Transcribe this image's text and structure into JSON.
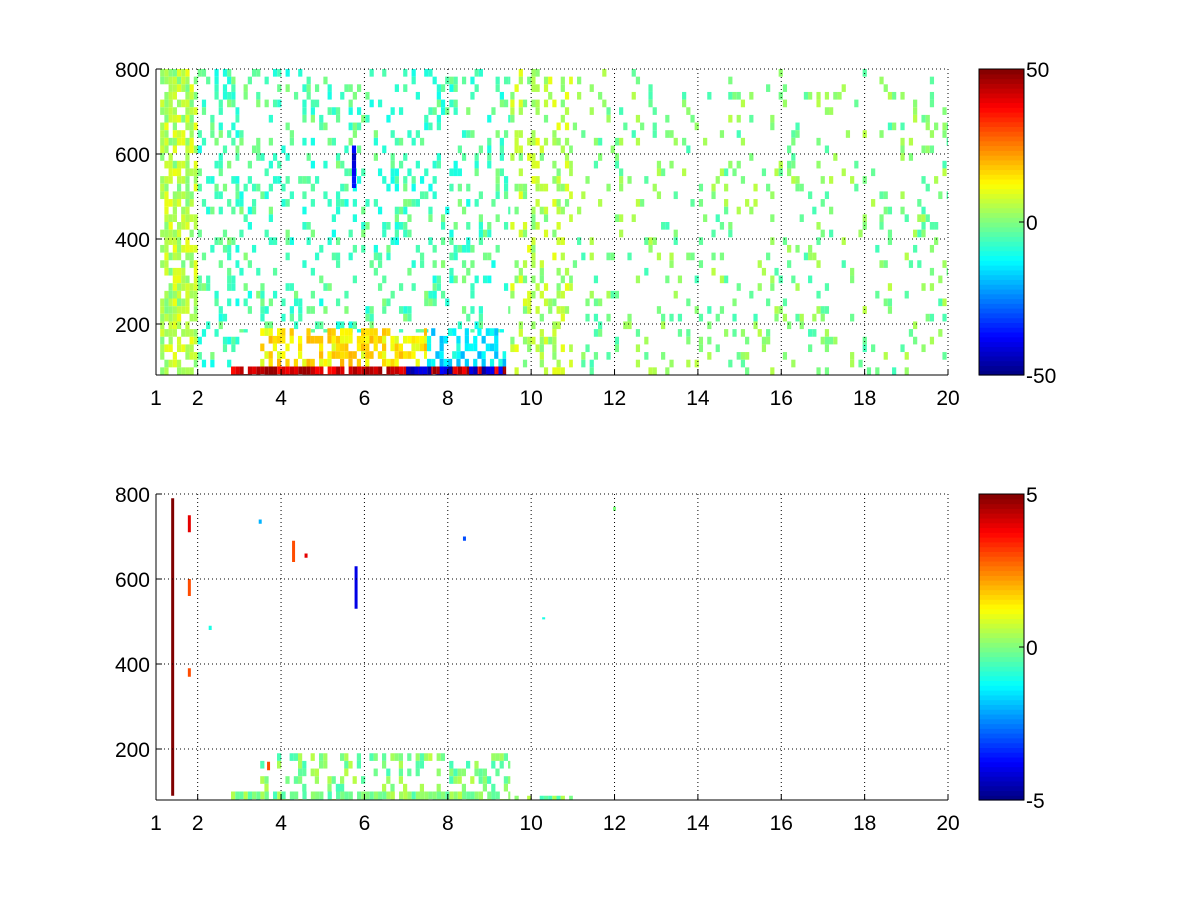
{
  "chart_data": [
    {
      "type": "heatmap",
      "title": "",
      "xlabel": "",
      "ylabel": "",
      "xlim": [
        1,
        20
      ],
      "ylim": [
        80,
        800
      ],
      "x_ticks": [
        1,
        2,
        4,
        6,
        8,
        10,
        12,
        14,
        16,
        18,
        20
      ],
      "x_tick_labels": [
        "1",
        "2",
        "4",
        "6",
        "8",
        "10",
        "12",
        "14",
        "16",
        "18",
        "20"
      ],
      "y_ticks": [
        200,
        400,
        600,
        800
      ],
      "y_tick_labels": [
        "200",
        "400",
        "600",
        "800"
      ],
      "grid": true,
      "colormap": "jet",
      "colorbar": {
        "range": [
          -50,
          50
        ],
        "ticks": [
          -50,
          0,
          50
        ],
        "tick_labels": [
          "-50",
          "0",
          "50"
        ]
      },
      "regions": [
        {
          "x": [
            1.1,
            2.0
          ],
          "y": [
            80,
            800
          ],
          "value": 5,
          "density": 0.7
        },
        {
          "x": [
            2.0,
            3.0
          ],
          "y": [
            80,
            800
          ],
          "value": -5,
          "density": 0.3
        },
        {
          "x": [
            3.0,
            9.5
          ],
          "y": [
            180,
            800
          ],
          "value": -5,
          "density": 0.22
        },
        {
          "x": [
            9.5,
            11.0
          ],
          "y": [
            80,
            800
          ],
          "value": 5,
          "density": 0.3
        },
        {
          "x": [
            11.0,
            20.0
          ],
          "y": [
            80,
            800
          ],
          "value": 0,
          "density": 0.12
        },
        {
          "x": [
            2.8,
            9.4
          ],
          "y": [
            80,
            100
          ],
          "value": 42,
          "density": 0.9
        },
        {
          "x": [
            7.0,
            9.4
          ],
          "y": [
            80,
            100
          ],
          "value": -42,
          "density": 0.7
        },
        {
          "x": [
            3.5,
            7.5
          ],
          "y": [
            100,
            190
          ],
          "value": 14,
          "density": 0.6
        },
        {
          "x": [
            7.5,
            9.4
          ],
          "y": [
            100,
            190
          ],
          "value": -14,
          "density": 0.6
        },
        {
          "x": [
            5.7,
            5.8
          ],
          "y": [
            520,
            620
          ],
          "value": -38,
          "density": 0.8
        }
      ]
    },
    {
      "type": "heatmap",
      "title": "",
      "xlabel": "",
      "ylabel": "",
      "xlim": [
        1,
        20
      ],
      "ylim": [
        80,
        800
      ],
      "x_ticks": [
        1,
        2,
        4,
        6,
        8,
        10,
        12,
        14,
        16,
        18,
        20
      ],
      "x_tick_labels": [
        "1",
        "2",
        "4",
        "6",
        "8",
        "10",
        "12",
        "14",
        "16",
        "18",
        "20"
      ],
      "y_ticks": [
        200,
        400,
        600,
        800
      ],
      "y_tick_labels": [
        "200",
        "400",
        "600",
        "800"
      ],
      "grid": true,
      "colormap": "jet",
      "colorbar": {
        "range": [
          -5,
          5
        ],
        "ticks": [
          -5,
          0,
          5
        ],
        "tick_labels": [
          "-5",
          "0",
          "5"
        ]
      },
      "regions": [
        {
          "x": [
            2.8,
            9.5
          ],
          "y": [
            80,
            100
          ],
          "value": 0,
          "density": 0.85
        },
        {
          "x": [
            3.5,
            9.5
          ],
          "y": [
            100,
            190
          ],
          "value": 0,
          "density": 0.3
        },
        {
          "x": [
            9.5,
            11.0
          ],
          "y": [
            80,
            90
          ],
          "value": 0,
          "density": 0.4
        }
      ],
      "cells": [
        {
          "x": 1.4,
          "y": [
            90,
            790
          ],
          "value": 5
        },
        {
          "x": 1.8,
          "y": [
            710,
            750
          ],
          "value": 4
        },
        {
          "x": 1.8,
          "y": [
            560,
            600
          ],
          "value": 3
        },
        {
          "x": 1.8,
          "y": [
            370,
            390
          ],
          "value": 3
        },
        {
          "x": 2.3,
          "y": [
            480,
            490
          ],
          "value": -1
        },
        {
          "x": 3.5,
          "y": [
            730,
            740
          ],
          "value": -2
        },
        {
          "x": 4.3,
          "y": [
            640,
            690
          ],
          "value": 3
        },
        {
          "x": 4.6,
          "y": [
            650,
            660
          ],
          "value": 4
        },
        {
          "x": 5.8,
          "y": [
            530,
            630
          ],
          "value": -4
        },
        {
          "x": 8.4,
          "y": [
            690,
            700
          ],
          "value": -3
        },
        {
          "x": 10.3,
          "y": [
            505,
            510
          ],
          "value": -1
        },
        {
          "x": 12.0,
          "y": [
            760,
            770
          ],
          "value": 0
        },
        {
          "x": 3.7,
          "y": [
            150,
            170
          ],
          "value": 3
        }
      ]
    }
  ]
}
